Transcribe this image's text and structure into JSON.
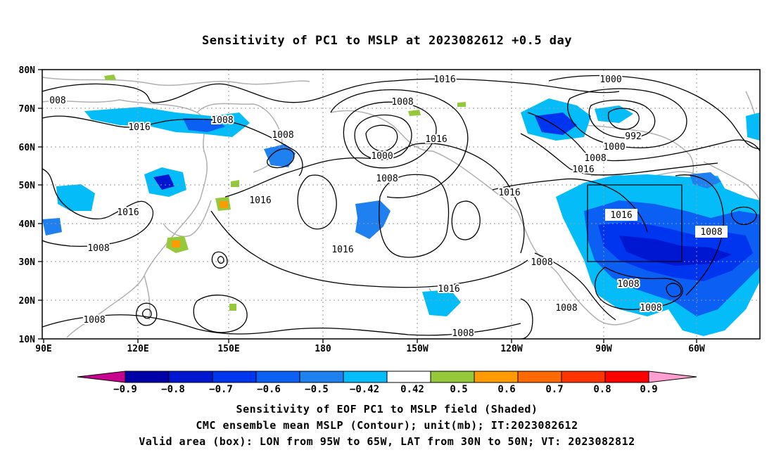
{
  "title": "Sensitivity of PC1 to MSLP at 2023082612 +0.5 day",
  "map": {
    "lat_labels": [
      "80N",
      "70N",
      "60N",
      "50N",
      "40N",
      "30N",
      "20N",
      "10N"
    ],
    "lon_labels": [
      "90E",
      "120E",
      "150E",
      "180",
      "150W",
      "120W",
      "90W",
      "60W"
    ],
    "valid_box": {
      "lon_w": "95W",
      "lon_e": "65W",
      "lat_s": "30N",
      "lat_n": "50N"
    },
    "contour_labels": [
      "008",
      "1016",
      "1008",
      "1008",
      "1016",
      "1008",
      "1016",
      "1008",
      "1000",
      "1008",
      "1016",
      "1000",
      "992",
      "1000",
      "1008",
      "1016",
      "1016",
      "1016",
      "1016",
      "1016",
      "1008",
      "1008",
      "1016",
      "1008",
      "1008",
      "1008",
      "1008"
    ]
  },
  "colorbar": {
    "colors": [
      "#c8048e",
      "#0000a8",
      "#0017d2",
      "#0035f0",
      "#0b5ff2",
      "#1f80f0",
      "#04bcf8",
      "#ffffff",
      "#96c83c",
      "#ff9a00",
      "#ff6a00",
      "#ff3400",
      "#ff0000",
      "#ff9ed0"
    ],
    "labels": [
      "−0.9",
      "−0.8",
      "−0.7",
      "−0.6",
      "−0.5",
      "−0.42",
      "0.42",
      "0.5",
      "0.6",
      "0.7",
      "0.8",
      "0.9"
    ]
  },
  "captions": {
    "line1": "Sensitivity of EOF PC1 to MSLP field (Shaded)",
    "line2": "CMC ensemble mean MSLP (Contour); unit(mb); IT:2023082612",
    "line3": "Valid area (box): LON from 95W to 65W, LAT from 30N to 50N; VT: 2023082812"
  }
}
